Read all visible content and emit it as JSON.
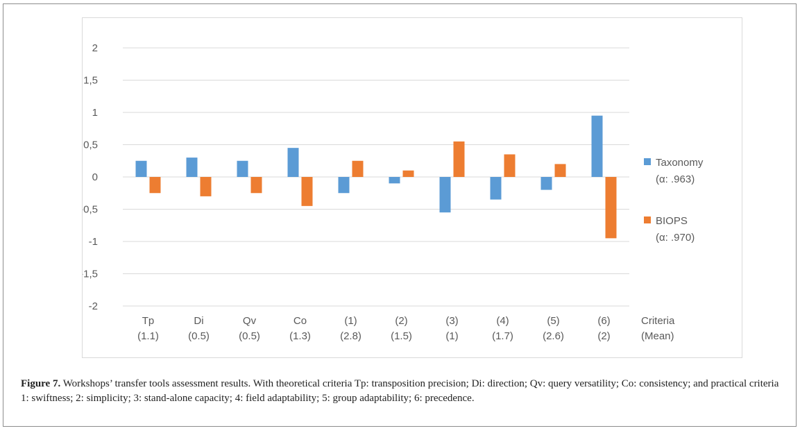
{
  "chart_data": {
    "type": "bar",
    "categories": [
      [
        "Tp",
        "(1.1)"
      ],
      [
        "Di",
        "(0.5)"
      ],
      [
        "Qv",
        "(0.5)"
      ],
      [
        "Co",
        "(1.3)"
      ],
      [
        "(1)",
        "(2.8)"
      ],
      [
        "(2)",
        "(1.5)"
      ],
      [
        "(3)",
        "(1)"
      ],
      [
        "(4)",
        "(1.7)"
      ],
      [
        "(5)",
        "(2.6)"
      ],
      [
        "(6)",
        "(2)"
      ]
    ],
    "series": [
      {
        "name_lines": [
          "Taxonomy",
          "(α: .963)"
        ],
        "color": "#5b9bd5",
        "values": [
          0.25,
          0.3,
          0.25,
          0.45,
          -0.25,
          -0.1,
          -0.55,
          -0.35,
          -0.2,
          0.95
        ]
      },
      {
        "name_lines": [
          "BIOPS",
          "(α: .970)"
        ],
        "color": "#ed7d31",
        "values": [
          -0.25,
          -0.3,
          -0.25,
          -0.45,
          0.25,
          0.1,
          0.55,
          0.35,
          0.2,
          -0.95
        ]
      }
    ],
    "xlabel_lines": [
      "Criteria",
      "(Mean)"
    ],
    "ylim": [
      -2,
      2
    ],
    "yticks": [
      2,
      1.5,
      1,
      0.5,
      0,
      -0.5,
      -1,
      -1.5,
      -2
    ],
    "ytick_labels": [
      "2",
      "1,5",
      "1",
      "0,5",
      "0",
      "-0,5",
      "-1",
      "-1,5",
      "-2"
    ],
    "grid": true,
    "legend_position": "right"
  },
  "caption": {
    "label": "Figure 7.",
    "text": " Workshops’ transfer tools assessment results. With theoretical criteria Tp: transposition precision; Di: direction; Qv: query versatility; Co: consistency; and practical criteria 1: swiftness; 2: simplicity; 3: stand-alone capacity; 4: field adaptability; 5: group adaptability; 6: precedence."
  }
}
